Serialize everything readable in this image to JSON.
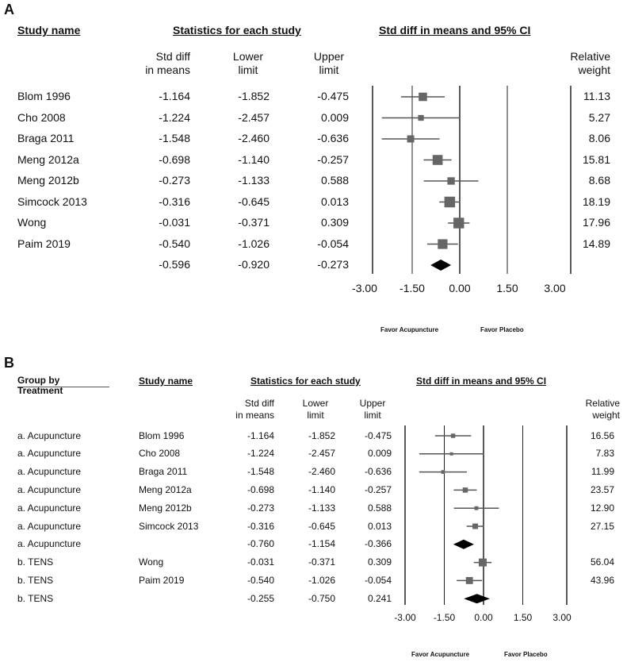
{
  "panels": [
    {
      "label": "A",
      "headers": {
        "study": "Study name",
        "stats": "Statistics for each study",
        "plot": "Std diff in means and 95% CI",
        "col1": [
          "Std diff",
          "in means"
        ],
        "col2": [
          "Lower",
          "limit"
        ],
        "col3": [
          "Upper",
          "limit"
        ],
        "weight": [
          "Relative",
          "weight"
        ]
      },
      "favor_left": "Favor Acupuncture",
      "favor_right": "Favor Placebo"
    },
    {
      "label": "B",
      "headers": {
        "group": [
          "Group by",
          "Treatment"
        ],
        "study": "Study name",
        "stats": "Statistics for each study",
        "plot": "Std diff in means and 95% CI",
        "col1": [
          "Std diff",
          "in means"
        ],
        "col2": [
          "Lower",
          "limit"
        ],
        "col3": [
          "Upper",
          "limit"
        ],
        "weight": [
          "Relative",
          "weight"
        ]
      },
      "favor_left": "Favor Acupuncture",
      "favor_right": "Favor Placebo"
    }
  ],
  "chart_data": [
    {
      "type": "forest",
      "xticks": [
        "-3.00",
        "-1.50",
        "0.00",
        "1.50",
        "3.00"
      ],
      "xlim": [
        -3,
        3
      ],
      "rows": [
        {
          "study": "Blom 1996",
          "smd": "-1.164",
          "lower": "-1.852",
          "upper": "-0.475",
          "weight": "11.13"
        },
        {
          "study": "Cho 2008",
          "smd": "-1.224",
          "lower": "-2.457",
          "upper": "0.009",
          "weight": "5.27"
        },
        {
          "study": "Braga 2011",
          "smd": "-1.548",
          "lower": "-2.460",
          "upper": "-0.636",
          "weight": "8.06"
        },
        {
          "study": "Meng 2012a",
          "smd": "-0.698",
          "lower": "-1.140",
          "upper": "-0.257",
          "weight": "15.81"
        },
        {
          "study": "Meng 2012b",
          "smd": "-0.273",
          "lower": "-1.133",
          "upper": "0.588",
          "weight": "8.68"
        },
        {
          "study": "Simcock 2013",
          "smd": "-0.316",
          "lower": "-0.645",
          "upper": "0.013",
          "weight": "18.19"
        },
        {
          "study": "Wong",
          "smd": "-0.031",
          "lower": "-0.371",
          "upper": "0.309",
          "weight": "17.96"
        },
        {
          "study": "Paim 2019",
          "smd": "-0.540",
          "lower": "-1.026",
          "upper": "-0.054",
          "weight": "14.89"
        },
        {
          "study": "",
          "smd": "-0.596",
          "lower": "-0.920",
          "upper": "-0.273",
          "weight": "",
          "summary": true
        }
      ]
    },
    {
      "type": "forest",
      "xticks": [
        "-3.00",
        "-1.50",
        "0.00",
        "1.50",
        "3.00"
      ],
      "xlim": [
        -3,
        3
      ],
      "rows": [
        {
          "group": "a. Acupuncture",
          "study": "Blom 1996",
          "smd": "-1.164",
          "lower": "-1.852",
          "upper": "-0.475",
          "weight": "16.56"
        },
        {
          "group": "a. Acupuncture",
          "study": "Cho 2008",
          "smd": "-1.224",
          "lower": "-2.457",
          "upper": "0.009",
          "weight": "7.83"
        },
        {
          "group": "a. Acupuncture",
          "study": "Braga 2011",
          "smd": "-1.548",
          "lower": "-2.460",
          "upper": "-0.636",
          "weight": "11.99"
        },
        {
          "group": "a. Acupuncture",
          "study": "Meng 2012a",
          "smd": "-0.698",
          "lower": "-1.140",
          "upper": "-0.257",
          "weight": "23.57"
        },
        {
          "group": "a. Acupuncture",
          "study": "Meng 2012b",
          "smd": "-0.273",
          "lower": "-1.133",
          "upper": "0.588",
          "weight": "12.90"
        },
        {
          "group": "a. Acupuncture",
          "study": "Simcock 2013",
          "smd": "-0.316",
          "lower": "-0.645",
          "upper": "0.013",
          "weight": "27.15"
        },
        {
          "group": "a. Acupuncture",
          "study": "",
          "smd": "-0.760",
          "lower": "-1.154",
          "upper": "-0.366",
          "weight": "",
          "summary": true
        },
        {
          "group": "b. TENS",
          "study": "Wong",
          "smd": "-0.031",
          "lower": "-0.371",
          "upper": "0.309",
          "weight": "56.04"
        },
        {
          "group": "b. TENS",
          "study": "Paim 2019",
          "smd": "-0.540",
          "lower": "-1.026",
          "upper": "-0.054",
          "weight": "43.96"
        },
        {
          "group": "b. TENS",
          "study": "",
          "smd": "-0.255",
          "lower": "-0.750",
          "upper": "0.241",
          "weight": "",
          "summary": true
        }
      ]
    }
  ]
}
